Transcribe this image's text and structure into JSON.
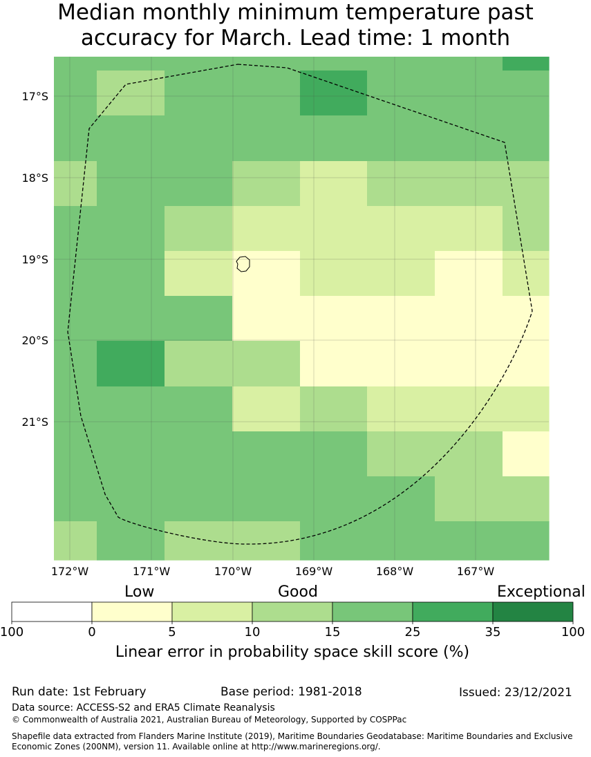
{
  "title": {
    "line1": "Median monthly minimum temperature past",
    "line2": "accuracy for March. Lead time: 1 month"
  },
  "map": {
    "lat_labels": [
      "17°S",
      "18°S",
      "19°S",
      "20°S",
      "21°S"
    ],
    "lon_labels": [
      "172°W",
      "171°W",
      "170°W",
      "169°W",
      "168°W",
      "167°W"
    ],
    "grid_categories": [
      [
        3,
        3,
        3,
        3,
        3,
        3,
        3,
        4
      ],
      [
        3,
        2,
        3,
        3,
        4,
        3,
        3,
        3
      ],
      [
        3,
        3,
        3,
        3,
        3,
        3,
        3,
        3
      ],
      [
        2,
        3,
        3,
        2,
        1,
        2,
        2,
        2
      ],
      [
        3,
        3,
        2,
        1,
        1,
        1,
        1,
        2
      ],
      [
        3,
        3,
        1,
        0,
        1,
        1,
        0,
        1
      ],
      [
        3,
        3,
        3,
        0,
        0,
        0,
        0,
        0
      ],
      [
        3,
        4,
        2,
        2,
        0,
        0,
        0,
        0
      ],
      [
        3,
        3,
        3,
        1,
        2,
        1,
        1,
        1
      ],
      [
        3,
        3,
        3,
        3,
        3,
        2,
        2,
        0
      ],
      [
        3,
        3,
        3,
        3,
        3,
        3,
        2,
        2
      ],
      [
        2,
        3,
        2,
        2,
        3,
        3,
        3,
        3
      ]
    ]
  },
  "legend": {
    "category_words": [
      "Low",
      "Good",
      "Exceptional"
    ],
    "tick_labels": [
      "100",
      "0",
      "5",
      "10",
      "15",
      "25",
      "35",
      "100"
    ],
    "colors": [
      "#ffffff",
      "#ffffcc",
      "#d9f0a3",
      "#addd8e",
      "#78c679",
      "#41ab5d",
      "#238443"
    ],
    "title": "Linear error in probability space skill score (%)"
  },
  "footer": {
    "run_date": "Run date: 1st February",
    "base_period": "Base period: 1981-2018",
    "issued": "Issued: 23/12/2021",
    "data_source": "Data source: ACCESS-S2 and ERA5 Climate Reanalysis",
    "copyright": "© Commonwealth of Australia 2021, Australian Bureau of Meteorology, Supported by COSPPac",
    "shapefile_line1": "Shapefile data extracted from Flanders Marine Institute (2019), Maritime Boundaries Geodatabase: Maritime Boundaries and Exclusive",
    "shapefile_line2": "Economic Zones (200NM), version 11. Available online at http://www.marineregions.org/."
  }
}
